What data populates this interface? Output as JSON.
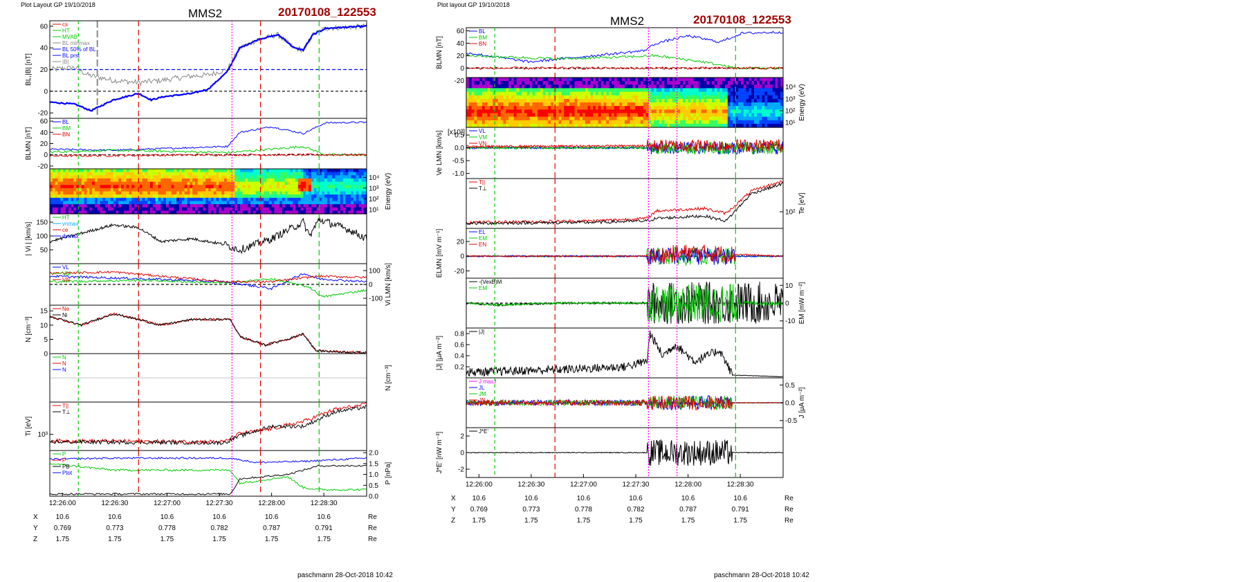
{
  "colors": {
    "red": "#e00000",
    "green": "#00cc00",
    "blue": "#0000ff",
    "magenta": "#ff00ff",
    "darkred": "#a00000",
    "cyan": "#00aaff",
    "black": "#000000",
    "gray": "#888888"
  },
  "chart_data": [
    {
      "type": "line",
      "header_left": "Plot Layout GP 19/10/2018",
      "title": "MMS2",
      "title_right": "20170108_122553",
      "footer": "paschmann 28-Oct-2018 10:42",
      "time_ticks": [
        "12:26:00",
        "12:26:30",
        "12:27:00",
        "12:27:30",
        "12:28:00",
        "12:28:30"
      ],
      "position_rows": [
        {
          "label": "X",
          "values": [
            "10.6",
            "10.6",
            "10.6",
            "10.6",
            "10.6",
            "10.6"
          ],
          "unit": "Re"
        },
        {
          "label": "Y",
          "values": [
            "0.769",
            "0.773",
            "0.778",
            "0.782",
            "0.787",
            "0.791"
          ],
          "unit": "Re"
        },
        {
          "label": "Z",
          "values": [
            "1.75",
            "1.75",
            "1.75",
            "1.75",
            "1.75",
            "1.75"
          ],
          "unit": "Re"
        }
      ],
      "panels": [
        {
          "ylabel": "BL,|B| [nT]",
          "side": "left",
          "ylim": [
            -25,
            65
          ],
          "ticks": [
            "60",
            "40",
            "20",
            "0",
            "-20"
          ],
          "legend": [
            "cs",
            "HT",
            "MVAB",
            "BL minmax",
            "BL 50% of BL",
            "BL prst",
            "|B|"
          ]
        },
        {
          "ylabel": "BLMN [nT]",
          "side": "left",
          "ylim": [
            -25,
            65
          ],
          "ticks": [
            "60",
            "40",
            "20",
            "0",
            "-20"
          ],
          "legend": [
            "BL",
            "BM",
            "BN"
          ]
        },
        {
          "ylabel": "Energy (eV)",
          "side": "right",
          "type": "heatmap",
          "ticks": [
            "10⁴",
            "10³",
            "10²",
            "10¹"
          ]
        },
        {
          "ylabel": "| Vi | [km/s]",
          "side": "left",
          "ylim": [
            0,
            180
          ],
          "ticks": [
            "150",
            "100",
            "50"
          ],
          "legend": [
            "HT",
            "vnmax",
            "ce",
            "dvmax"
          ]
        },
        {
          "ylabel": "Vi LMN [km/s]",
          "side": "right",
          "ylim": [
            -150,
            150
          ],
          "ticks": [
            "100",
            "0",
            "-100"
          ],
          "legend": [
            "VL",
            "VM",
            "VN"
          ]
        },
        {
          "ylabel": "N [cm⁻³]",
          "side": "left",
          "ylim": [
            0,
            17
          ],
          "ticks": [
            "15",
            "10",
            "5",
            "0"
          ],
          "legend": [
            "Ne",
            "Ni"
          ]
        },
        {
          "ylabel": "N [cm⁻³]",
          "side": "right",
          "ticks": [],
          "legend": [
            "N",
            "N",
            "N"
          ]
        },
        {
          "ylabel": "Ti [eV]",
          "side": "left",
          "ticks": [
            "10³"
          ],
          "legend": [
            "T||",
            "T⊥"
          ]
        },
        {
          "ylabel": "P [nPa]",
          "side": "right",
          "ylim": [
            0,
            2.1
          ],
          "ticks": [
            "2.0",
            "1.5",
            "1.0",
            "0.5",
            "0.0"
          ],
          "legend": [
            "P",
            "P",
            "PB",
            "Ptot"
          ]
        }
      ]
    },
    {
      "type": "line",
      "header_left": "Plot layout GP 19/10/2018",
      "title": "MMS2",
      "title_right": "20170108_122553",
      "footer": "paschmann 28-Oct-2018 10:42",
      "time_ticks": [
        "12:26:00",
        "12:26:30",
        "12:27:00",
        "12:27:30",
        "12:28:00",
        "12:28:30"
      ],
      "position_rows": [
        {
          "label": "X",
          "values": [
            "10.6",
            "10.6",
            "10.6",
            "10.6",
            "10.6",
            "10.6"
          ],
          "unit": "Re"
        },
        {
          "label": "Y",
          "values": [
            "0.769",
            "0.773",
            "0.778",
            "0.782",
            "0.787",
            "0.791"
          ],
          "unit": "Re"
        },
        {
          "label": "Z",
          "values": [
            "1.75",
            "1.75",
            "1.75",
            "1.75",
            "1.75",
            "1.75"
          ],
          "unit": "Re"
        }
      ],
      "panels": [
        {
          "ylabel": "BLMN [nT]",
          "side": "left",
          "ylim": [
            -15,
            65
          ],
          "ticks": [
            "60",
            "40",
            "20",
            "0",
            "-20"
          ],
          "legend": [
            "BL",
            "BM",
            "BN"
          ]
        },
        {
          "ylabel": "Energy (eV)",
          "side": "right",
          "type": "heatmap",
          "ticks": [
            "10⁴",
            "10³",
            "10²",
            "10¹"
          ]
        },
        {
          "ylabel": "Ve LMN [km/s]",
          "side": "left",
          "ylim": [
            -1.2,
            0.8
          ],
          "ticks": [
            "0.5",
            "0.0",
            "-0.5",
            "-1.0"
          ],
          "multiplier": "[x10³]",
          "legend": [
            "VL",
            "VM",
            "VN"
          ]
        },
        {
          "ylabel": "Te [eV]",
          "side": "right",
          "ticks": [
            "10²"
          ],
          "legend": [
            "T||",
            "T⊥"
          ]
        },
        {
          "ylabel": "ELMN [mV m⁻¹]",
          "side": "left",
          "ylim": [
            -30,
            38
          ],
          "ticks": [
            "20",
            "0",
            "-20"
          ],
          "legend": [
            "EL",
            "EM",
            "EN"
          ]
        },
        {
          "ylabel": "EM [mW m⁻²]",
          "side": "right",
          "ylim": [
            -14,
            14
          ],
          "ticks": [
            "10",
            "0",
            "-10"
          ],
          "legend": [
            "-(VexB)M",
            "EM"
          ]
        },
        {
          "ylabel": "|J| [μA m⁻²]",
          "side": "left",
          "ylim": [
            0,
            0.9
          ],
          "ticks": [
            "0.8",
            "0.6",
            "0.4",
            "0.2"
          ],
          "legend": [
            "|J|"
          ]
        },
        {
          "ylabel": "J [μA m⁻²]",
          "side": "right",
          "ylim": [
            -0.7,
            0.7
          ],
          "ticks": [
            "0.5",
            "0.0",
            "-0.5"
          ],
          "legend": [
            "J maxJ",
            "JL",
            "JM",
            "JN"
          ]
        },
        {
          "ylabel": "J*E' [nW m⁻³]",
          "side": "left",
          "ylim": [
            -3,
            3
          ],
          "ticks": [
            "2",
            "0",
            "-2"
          ],
          "legend": [
            "J*E'"
          ]
        }
      ]
    }
  ]
}
